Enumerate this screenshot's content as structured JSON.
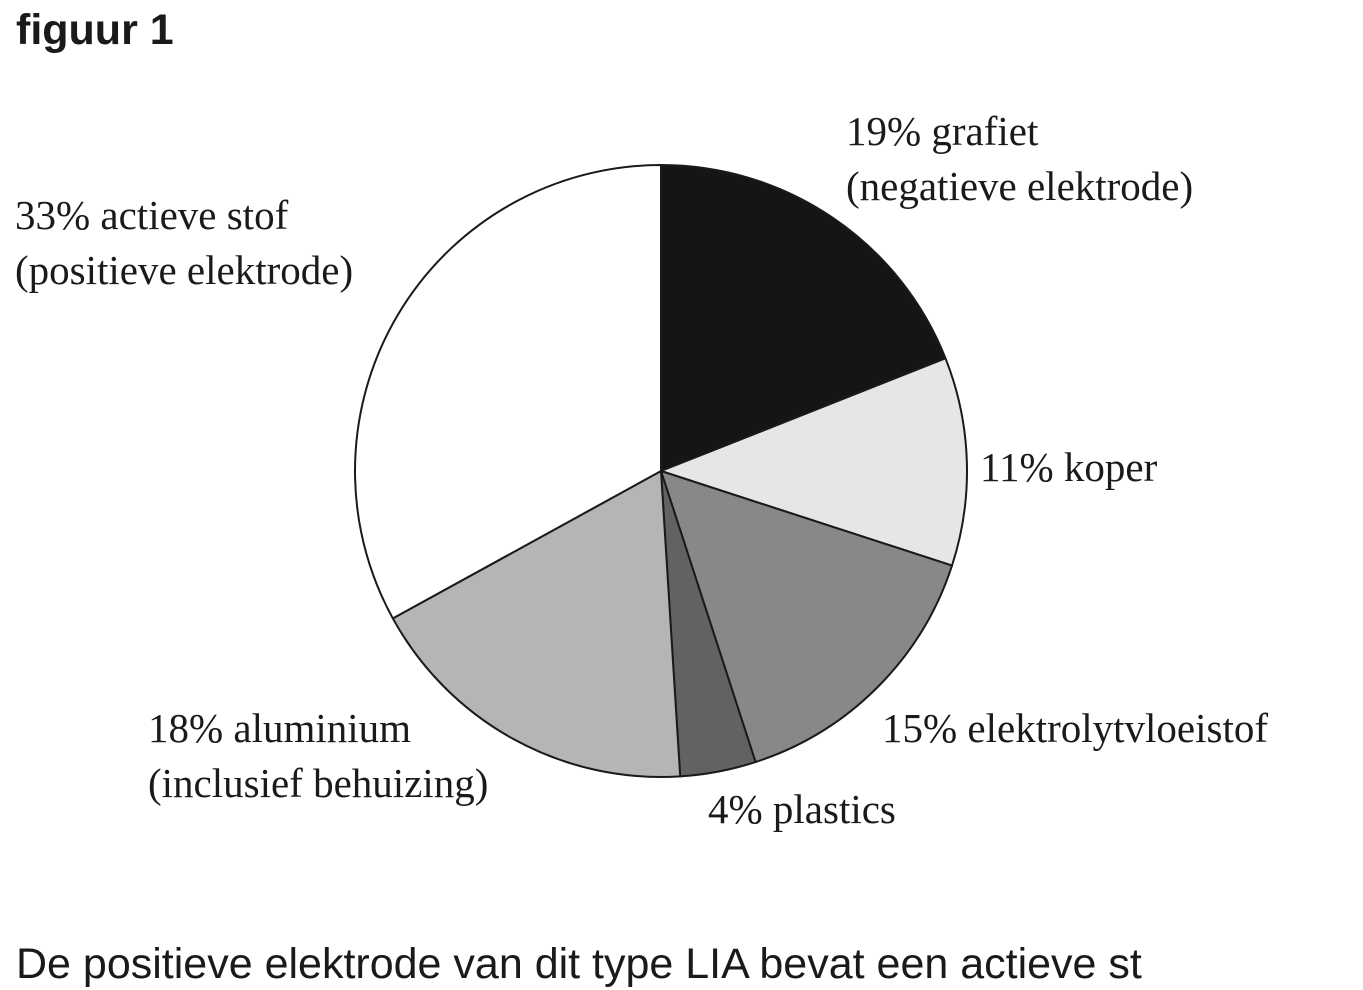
{
  "heading": "figuur 1",
  "chart_data": {
    "type": "pie",
    "slices": [
      {
        "value": 19,
        "label_lines": [
          "19% grafiet",
          "(negatieve elektrode)"
        ],
        "color": "#151515"
      },
      {
        "value": 11,
        "label_lines": [
          "11% koper"
        ],
        "color": "#e6e6e6"
      },
      {
        "value": 15,
        "label_lines": [
          "15% elektrolytvloeistof"
        ],
        "color": "#878889"
      },
      {
        "value": 4,
        "label_lines": [
          "4% plastics"
        ],
        "color": "#616362"
      },
      {
        "value": 18,
        "label_lines": [
          "18% aluminium",
          "(inclusief behuizing)"
        ],
        "color": "#b4b5b6"
      },
      {
        "value": 33,
        "label_lines": [
          "33% actieve stof",
          "(positieve elektrode)"
        ],
        "color": "#ffffff"
      }
    ],
    "start": "12 o'clock",
    "direction": "clockwise",
    "legend": "none"
  },
  "body_text": "De positieve elektrode van dit type LIA bevat een actieve st"
}
